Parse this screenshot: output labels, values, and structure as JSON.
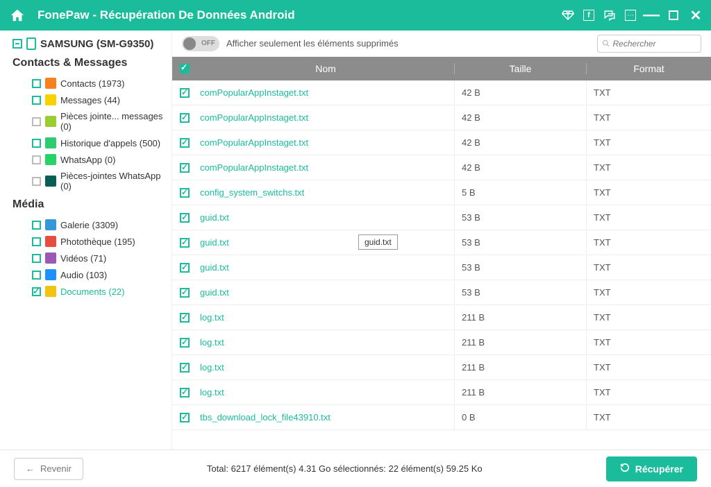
{
  "title": "FonePaw - Récupération De Données Android",
  "device": "SAMSUNG (SM-G9350)",
  "toggle_label": "OFF",
  "toggle_text": "Afficher seulement les éléments supprimés",
  "search_placeholder": "Rechercher",
  "sidebar": {
    "section1": "Contacts & Messages",
    "section2": "Média",
    "items1": [
      {
        "label": "Contacts (1973)",
        "icon_bg": "#f5821f"
      },
      {
        "label": "Messages (44)",
        "icon_bg": "#f6d200"
      },
      {
        "label": "Pièces jointe... messages (0)",
        "icon_bg": "#9acd32",
        "gray": true
      },
      {
        "label": "Historique d'appels (500)",
        "icon_bg": "#2ecc71"
      },
      {
        "label": "WhatsApp (0)",
        "icon_bg": "#25d366",
        "gray": true
      },
      {
        "label": "Pièces-jointes WhatsApp (0)",
        "icon_bg": "#075e54",
        "gray": true
      }
    ],
    "items2": [
      {
        "label": "Galerie (3309)",
        "icon_bg": "#3498db"
      },
      {
        "label": "Photothèque (195)",
        "icon_bg": "#e74c3c"
      },
      {
        "label": "Vidéos (71)",
        "icon_bg": "#9b59b6"
      },
      {
        "label": "Audio (103)",
        "icon_bg": "#1e90ff"
      },
      {
        "label": "Documents (22)",
        "icon_bg": "#f1c40f",
        "active": true,
        "checked": true
      }
    ]
  },
  "columns": {
    "cb": "",
    "nom": "Nom",
    "taille": "Taille",
    "format": "Format"
  },
  "rows": [
    {
      "nom": "comPopularAppInstaget.txt",
      "taille": "42 B",
      "format": "TXT"
    },
    {
      "nom": "comPopularAppInstaget.txt",
      "taille": "42 B",
      "format": "TXT"
    },
    {
      "nom": "comPopularAppInstaget.txt",
      "taille": "42 B",
      "format": "TXT"
    },
    {
      "nom": "comPopularAppInstaget.txt",
      "taille": "42 B",
      "format": "TXT"
    },
    {
      "nom": "config_system_switchs.txt",
      "taille": "5 B",
      "format": "TXT"
    },
    {
      "nom": "guid.txt",
      "taille": "53 B",
      "format": "TXT"
    },
    {
      "nom": "guid.txt",
      "taille": "53 B",
      "format": "TXT",
      "tooltip": "guid.txt"
    },
    {
      "nom": "guid.txt",
      "taille": "53 B",
      "format": "TXT"
    },
    {
      "nom": "guid.txt",
      "taille": "53 B",
      "format": "TXT"
    },
    {
      "nom": "log.txt",
      "taille": "211 B",
      "format": "TXT"
    },
    {
      "nom": "log.txt",
      "taille": "211 B",
      "format": "TXT"
    },
    {
      "nom": "log.txt",
      "taille": "211 B",
      "format": "TXT"
    },
    {
      "nom": "log.txt",
      "taille": "211 B",
      "format": "TXT"
    },
    {
      "nom": "tbs_download_lock_file43910.txt",
      "taille": "0 B",
      "format": "TXT"
    }
  ],
  "footer": {
    "back": "Revenir",
    "status": "Total: 6217 élément(s) 4.31 Go   sélectionnés: 22 élément(s) 59.25 Ko",
    "recover": "Récupérer"
  }
}
